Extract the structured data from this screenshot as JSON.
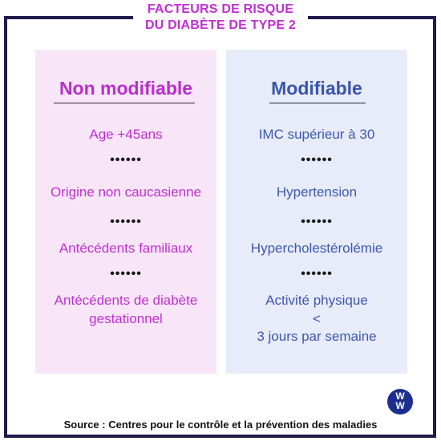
{
  "title": {
    "line1": "FACTEURS DE RISQUE",
    "line2": "DU DIABÈTE DE TYPE 2"
  },
  "left_column": {
    "heading": "Non modifiable",
    "items": [
      "Age +45ans",
      "Origine non caucasienne",
      "Antécédents familiaux",
      "Antécédents de diabète",
      "gestationnel"
    ]
  },
  "right_column": {
    "heading": "Modifiable",
    "items": [
      "IMC supérieur à 30",
      "Hypertension",
      "Hypercholestérolémie",
      "Activité physique",
      "<",
      "3 jours par semaine"
    ]
  },
  "separator": "••••••",
  "logo": {
    "top": "W",
    "bottom": "W"
  },
  "source": "Source : Centres pour le contrôle et la prévention des maladies",
  "colors": {
    "frame": "#1e1b4b",
    "accent_pink": "#c02fd1",
    "accent_blue": "#3e58ad",
    "left_bg": "#f8e6f8",
    "right_bg": "#e7ebfa",
    "logo_bg": "#1c2f8f"
  }
}
